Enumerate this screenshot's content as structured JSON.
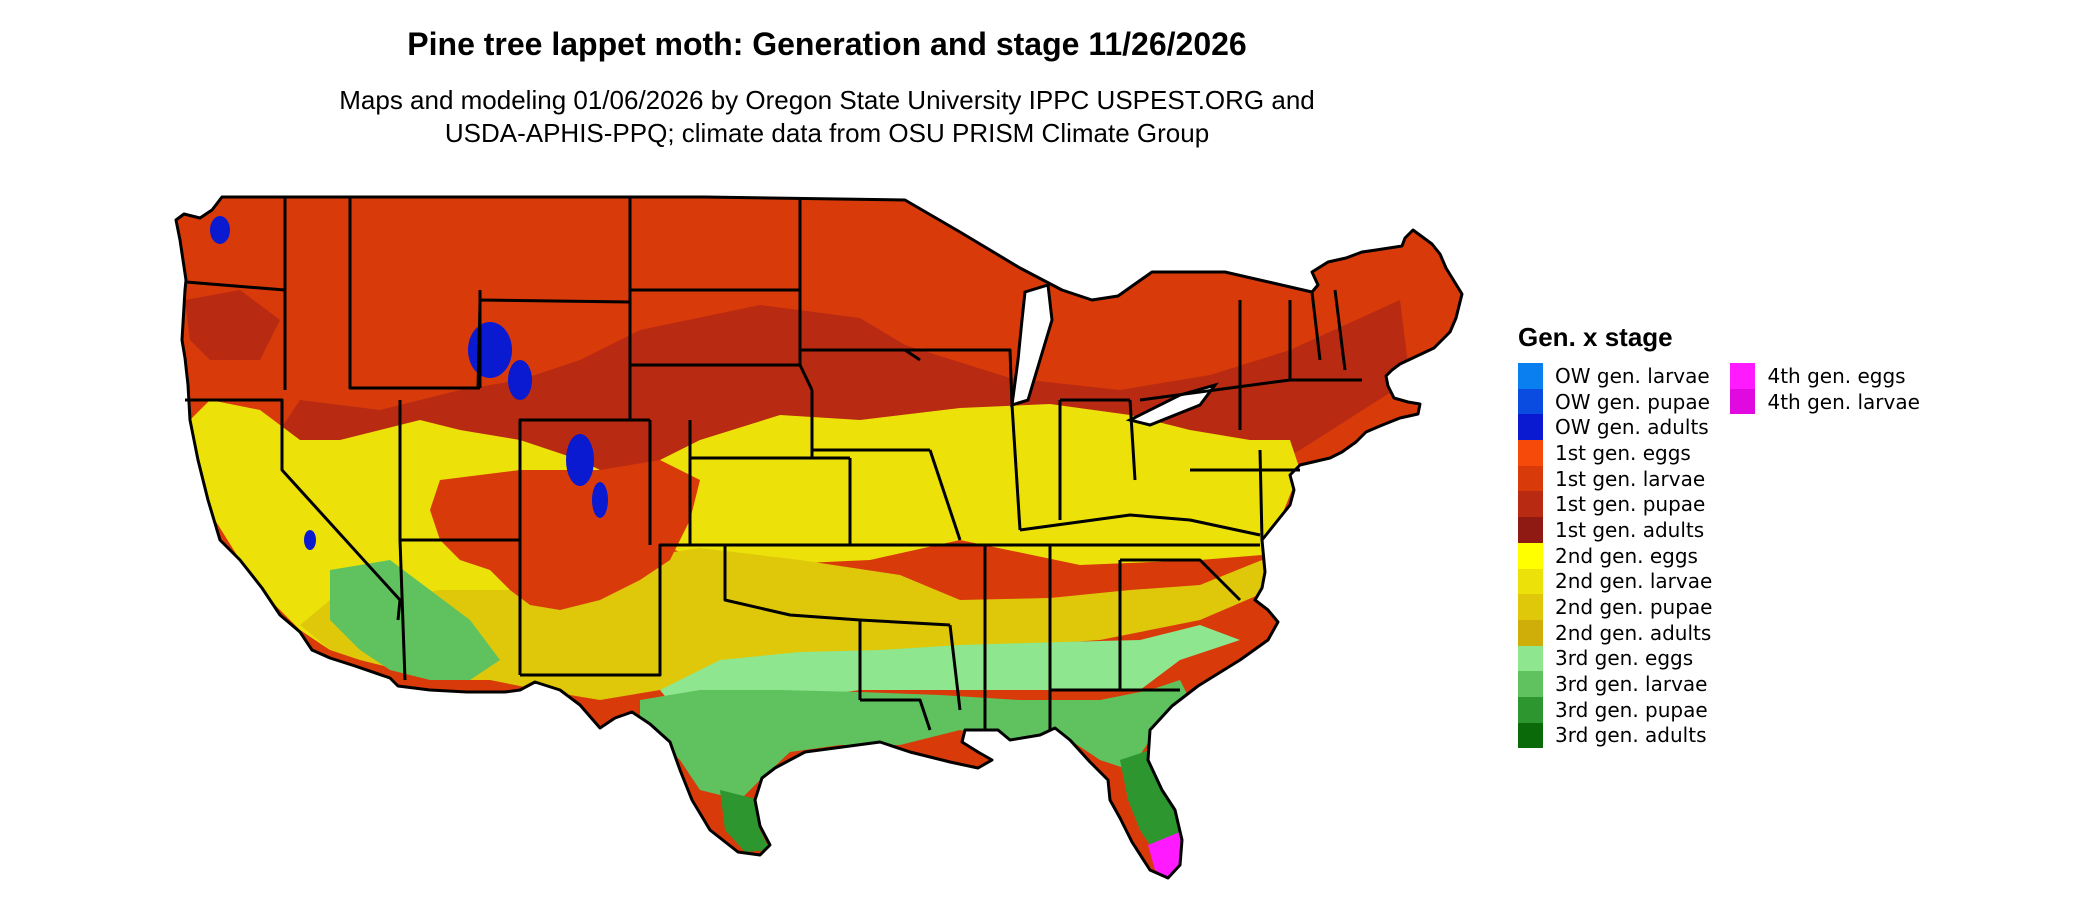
{
  "title": "Pine tree lappet moth: Generation and stage 11/26/2026",
  "subtitle_line1": "Maps and modeling 01/06/2026 by Oregon State University IPPC USPEST.ORG and",
  "subtitle_line2": "USDA-APHIS-PPQ; climate data from OSU PRISM Climate Group",
  "legend": {
    "title": "Gen. x stage",
    "columns": [
      [
        {
          "label": "OW gen. larvae",
          "color": "#0a7ff0"
        },
        {
          "label": "OW gen. pupae",
          "color": "#0a4ce0"
        },
        {
          "label": "OW gen. adults",
          "color": "#0a1ad0"
        },
        {
          "label": "1st gen. eggs",
          "color": "#f54a0a"
        },
        {
          "label": "1st gen. larvae",
          "color": "#d93a0a"
        },
        {
          "label": "1st gen. pupae",
          "color": "#b82a12"
        },
        {
          "label": "1st gen. adults",
          "color": "#8f1a14"
        },
        {
          "label": "2nd gen. eggs",
          "color": "#ffff00"
        },
        {
          "label": "2nd gen. larvae",
          "color": "#ece20a"
        },
        {
          "label": "2nd gen. pupae",
          "color": "#dfc80a"
        },
        {
          "label": "2nd gen. adults",
          "color": "#cfae0a"
        },
        {
          "label": "3rd gen. eggs",
          "color": "#8ee68e"
        },
        {
          "label": "3rd gen. larvae",
          "color": "#5fc25f"
        },
        {
          "label": "3rd gen. pupae",
          "color": "#2e962e"
        },
        {
          "label": "3rd gen. adults",
          "color": "#0a6a0a"
        }
      ],
      [
        {
          "label": "4th gen. eggs",
          "color": "#ff1aff"
        },
        {
          "label": "4th gen. larvae",
          "color": "#e00ae0"
        }
      ]
    ]
  },
  "map_colors": {
    "first_gen_larvae": "#d93a0a",
    "first_gen_pupae": "#b82a12",
    "second_gen_larvae": "#ece20a",
    "second_gen_pupae": "#dfc80a",
    "third_gen_eggs": "#8ee68e",
    "third_gen_larvae": "#5fc25f",
    "third_gen_pupae": "#2e962e",
    "fourth_gen_eggs": "#ff1aff",
    "ow_gen_adults": "#0a1ad0",
    "state_border": "#000000"
  }
}
